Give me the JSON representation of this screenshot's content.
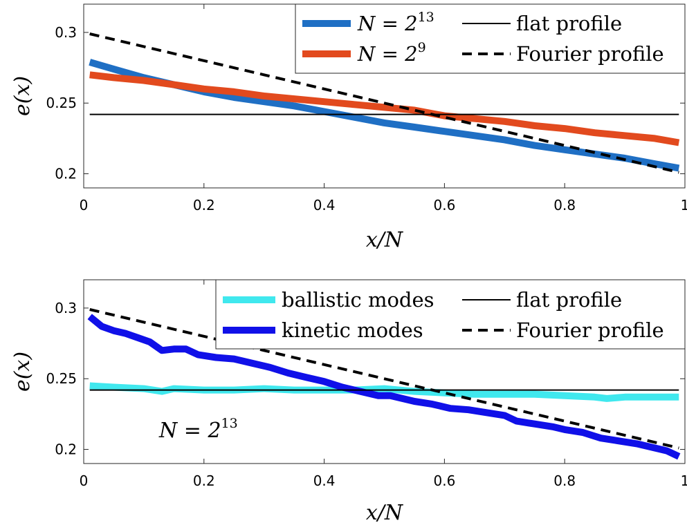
{
  "chart_data": [
    {
      "type": "line",
      "xlabel": "x/N",
      "ylabel": "e(x)",
      "xlim": [
        0,
        1
      ],
      "ylim": [
        0.19,
        0.32
      ],
      "xticks": [
        "0",
        "0.2",
        "0.4",
        "0.6",
        "0.8",
        "1"
      ],
      "yticks": [
        "0.2",
        "0.25",
        "0.3"
      ],
      "legend_placement": "top-right",
      "series": [
        {
          "name": "N = 2^13",
          "name_base": "N = 2",
          "name_exp": "13",
          "color": "#1f6fc4",
          "style": "thick",
          "x": [
            0.01,
            0.05,
            0.1,
            0.15,
            0.2,
            0.25,
            0.3,
            0.35,
            0.4,
            0.45,
            0.5,
            0.55,
            0.6,
            0.65,
            0.7,
            0.75,
            0.8,
            0.85,
            0.9,
            0.95,
            0.99
          ],
          "y": [
            0.279,
            0.274,
            0.268,
            0.263,
            0.258,
            0.254,
            0.251,
            0.248,
            0.244,
            0.24,
            0.236,
            0.233,
            0.23,
            0.227,
            0.224,
            0.22,
            0.217,
            0.214,
            0.211,
            0.207,
            0.204
          ]
        },
        {
          "name": "N = 2^9",
          "name_base": "N = 2",
          "name_exp": "9",
          "color": "#e24a1e",
          "style": "thick",
          "x": [
            0.01,
            0.05,
            0.1,
            0.15,
            0.2,
            0.25,
            0.3,
            0.35,
            0.4,
            0.45,
            0.5,
            0.55,
            0.6,
            0.65,
            0.7,
            0.75,
            0.8,
            0.85,
            0.9,
            0.95,
            0.99
          ],
          "y": [
            0.27,
            0.268,
            0.266,
            0.263,
            0.26,
            0.258,
            0.255,
            0.253,
            0.251,
            0.249,
            0.247,
            0.245,
            0.241,
            0.239,
            0.237,
            0.234,
            0.232,
            0.229,
            0.227,
            0.225,
            0.222
          ]
        },
        {
          "name": "flat profile",
          "color": "#000000",
          "style": "solid",
          "x": [
            0.01,
            0.99
          ],
          "y": [
            0.242,
            0.242
          ]
        },
        {
          "name": "Fourier profile",
          "color": "#000000",
          "style": "dashed",
          "x": [
            0.01,
            0.99
          ],
          "y": [
            0.299,
            0.201
          ]
        }
      ],
      "legend": [
        [
          "N = 2^13",
          "flat profile"
        ],
        [
          "N = 2^9",
          "Fourier profile"
        ]
      ]
    },
    {
      "type": "line",
      "xlabel": "x/N",
      "ylabel": "e(x)",
      "xlim": [
        0,
        1
      ],
      "ylim": [
        0.19,
        0.32
      ],
      "xticks": [
        "0",
        "0.2",
        "0.4",
        "0.6",
        "0.8",
        "1"
      ],
      "yticks": [
        "0.2",
        "0.25",
        "0.3"
      ],
      "legend_placement": "top-right",
      "annotation": {
        "text_base": "N = 2",
        "text_exp": "13"
      },
      "series": [
        {
          "name": "ballistic modes",
          "color": "#40e8ee",
          "style": "thick",
          "x": [
            0.01,
            0.05,
            0.1,
            0.13,
            0.15,
            0.2,
            0.25,
            0.3,
            0.35,
            0.4,
            0.45,
            0.5,
            0.55,
            0.6,
            0.65,
            0.7,
            0.75,
            0.8,
            0.85,
            0.87,
            0.9,
            0.95,
            0.99
          ],
          "y": [
            0.245,
            0.244,
            0.243,
            0.241,
            0.243,
            0.242,
            0.242,
            0.243,
            0.242,
            0.242,
            0.242,
            0.243,
            0.241,
            0.24,
            0.239,
            0.239,
            0.239,
            0.238,
            0.237,
            0.236,
            0.237,
            0.237,
            0.237
          ]
        },
        {
          "name": "kinetic modes",
          "color": "#1010e8",
          "style": "thick",
          "x": [
            0.01,
            0.03,
            0.05,
            0.07,
            0.09,
            0.11,
            0.13,
            0.15,
            0.17,
            0.19,
            0.22,
            0.25,
            0.28,
            0.31,
            0.34,
            0.37,
            0.4,
            0.43,
            0.46,
            0.49,
            0.51,
            0.53,
            0.55,
            0.58,
            0.61,
            0.64,
            0.67,
            0.7,
            0.72,
            0.75,
            0.78,
            0.8,
            0.83,
            0.86,
            0.89,
            0.92,
            0.95,
            0.97,
            0.99
          ],
          "y": [
            0.294,
            0.287,
            0.284,
            0.282,
            0.279,
            0.276,
            0.27,
            0.271,
            0.271,
            0.267,
            0.265,
            0.264,
            0.261,
            0.258,
            0.254,
            0.251,
            0.248,
            0.244,
            0.241,
            0.238,
            0.238,
            0.236,
            0.234,
            0.232,
            0.229,
            0.228,
            0.226,
            0.224,
            0.22,
            0.218,
            0.216,
            0.214,
            0.212,
            0.208,
            0.206,
            0.204,
            0.201,
            0.199,
            0.195
          ]
        },
        {
          "name": "flat profile",
          "color": "#000000",
          "style": "solid",
          "x": [
            0.01,
            0.99
          ],
          "y": [
            0.242,
            0.242
          ]
        },
        {
          "name": "Fourier profile",
          "color": "#000000",
          "style": "dashed",
          "x": [
            0.01,
            0.99
          ],
          "y": [
            0.299,
            0.201
          ]
        }
      ],
      "legend": [
        [
          "ballistic modes",
          "flat profile"
        ],
        [
          "kinetic modes",
          "Fourier profile"
        ]
      ]
    }
  ]
}
